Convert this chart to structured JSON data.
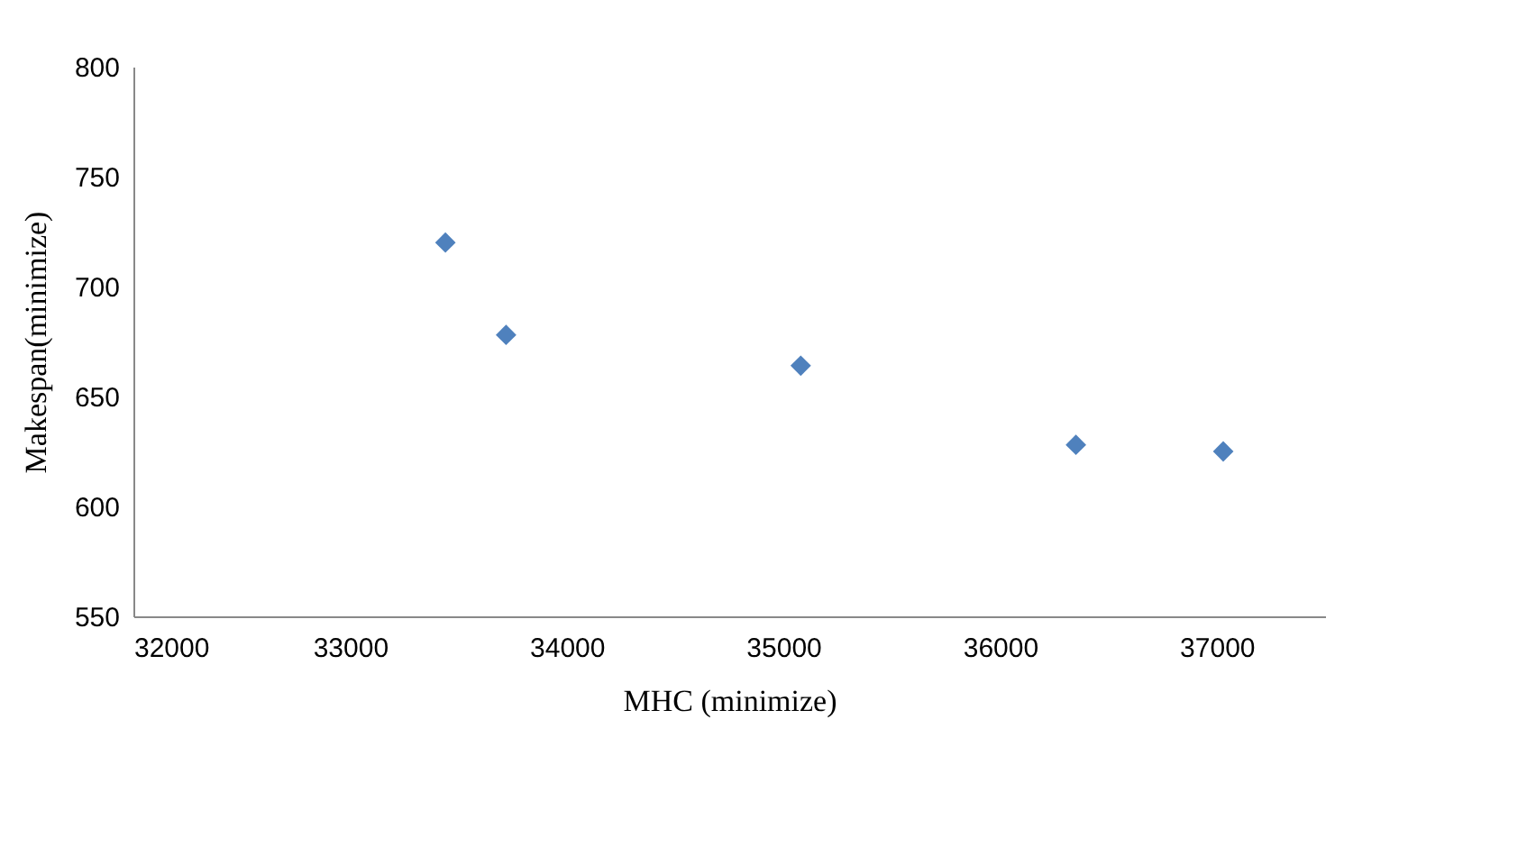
{
  "chart_data": {
    "type": "scatter",
    "xlabel": "MHC (minimize)",
    "ylabel": "Makespan(minimize)",
    "x": [
      33440,
      33720,
      35080,
      36350,
      37030
    ],
    "series": [
      {
        "color": "#4f81bd",
        "values": [
          720,
          678,
          664,
          628,
          625
        ]
      }
    ],
    "xlim": [
      32000,
      37500
    ],
    "xticks": [
      32000,
      33000,
      34000,
      35000,
      36000,
      37000
    ],
    "ylim": [
      550,
      800
    ],
    "yticks": [
      550,
      600,
      650,
      700,
      750,
      800
    ],
    "marker": "diamond",
    "grid": false
  }
}
